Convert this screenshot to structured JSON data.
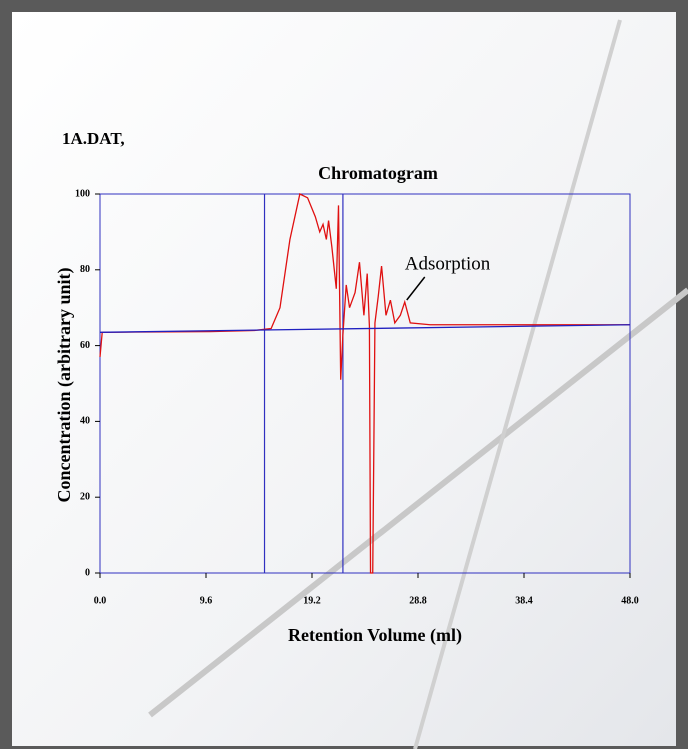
{
  "chart_data": {
    "type": "line",
    "label": "1A.DAT,",
    "title": "Chromatogram",
    "x_label": "Retention Volume (ml)",
    "y_label": "Concentration (arbitrary unit)",
    "annotation": {
      "text": "Adsorption",
      "x": 27.6,
      "y": 71.5
    },
    "xlim": [
      0,
      48
    ],
    "ylim": [
      0,
      100
    ],
    "xticks": [
      {
        "value": 0,
        "label": "0.0"
      },
      9.6,
      19.2,
      28.8,
      38.4,
      {
        "value": 48,
        "label": "48.0"
      }
    ],
    "yticks": [
      0,
      20,
      40,
      60,
      80,
      100
    ],
    "vlines": [
      14.9,
      22.0
    ],
    "vline_color": "#3030c0",
    "frame_color": "#3030c0",
    "series": [
      {
        "color": "#e01010",
        "x": [
          0,
          0.2,
          10,
          14,
          15.5,
          16.3,
          17.2,
          18.1,
          18.8,
          19.5,
          19.9,
          20.2,
          20.5,
          20.7,
          21.0,
          21.4,
          21.6,
          21.8,
          22.0,
          22.3,
          22.6,
          23.1,
          23.5,
          23.9,
          24.2,
          24.4,
          24.5,
          24.7,
          24.9,
          25.2,
          25.5,
          25.9,
          26.3,
          26.7,
          27.2,
          27.6,
          28.1,
          29.9,
          48
        ],
        "values": [
          57,
          63.5,
          63.7,
          64,
          64.5,
          70,
          88,
          100,
          99,
          94,
          90,
          92,
          88,
          93,
          86,
          75,
          97,
          51,
          63,
          76,
          70,
          74,
          82,
          68,
          79,
          65,
          0,
          0,
          66,
          73,
          81,
          68,
          72,
          66,
          68,
          71.5,
          66,
          65.5,
          65.5
        ]
      },
      {
        "color": "#2020c0",
        "x": [
          0,
          48
        ],
        "values": [
          63.5,
          65.5
        ]
      }
    ]
  }
}
